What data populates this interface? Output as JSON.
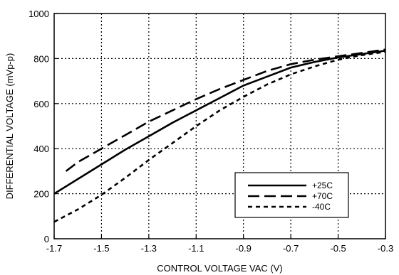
{
  "chart_data": {
    "type": "line",
    "title": "",
    "xlabel": "CONTROL VOLTAGE VAC (V)",
    "ylabel": "DIFFERENTIAL VOLTAGE (mVp-p)",
    "xlim": [
      -1.7,
      -0.3
    ],
    "ylim": [
      0,
      1000
    ],
    "xticks": [
      -1.7,
      -1.5,
      -1.3,
      -1.1,
      -0.9,
      -0.7,
      -0.5,
      -0.3
    ],
    "xtick_labels": [
      "-1.7",
      "-1.5",
      "-1.3",
      "-1.1",
      "-0.9",
      "-0.7",
      "-0.5",
      "-0.3"
    ],
    "yticks": [
      0,
      200,
      400,
      600,
      800,
      1000
    ],
    "ytick_labels": [
      "0",
      "200",
      "400",
      "600",
      "800",
      "1000"
    ],
    "grid": true,
    "legend_position": "bottom-right",
    "series": [
      {
        "name": "+25C",
        "dash": "solid",
        "x": [
          -1.7,
          -1.6,
          -1.5,
          -1.4,
          -1.3,
          -1.2,
          -1.1,
          -1.0,
          -0.9,
          -0.8,
          -0.7,
          -0.6,
          -0.5,
          -0.4,
          -0.3
        ],
        "y": [
          200,
          265,
          330,
          395,
          455,
          515,
          570,
          625,
          680,
          720,
          760,
          785,
          805,
          820,
          835
        ]
      },
      {
        "name": "+70C",
        "dash": "long-dash",
        "x": [
          -1.65,
          -1.6,
          -1.5,
          -1.4,
          -1.3,
          -1.2,
          -1.1,
          -1.0,
          -0.9,
          -0.8,
          -0.7,
          -0.6,
          -0.5,
          -0.4,
          -0.3
        ],
        "y": [
          300,
          340,
          400,
          460,
          520,
          570,
          620,
          665,
          705,
          745,
          775,
          795,
          810,
          825,
          840
        ]
      },
      {
        "name": "-40C",
        "dash": "short-dash",
        "x": [
          -1.7,
          -1.6,
          -1.5,
          -1.4,
          -1.3,
          -1.2,
          -1.1,
          -1.0,
          -0.9,
          -0.8,
          -0.7,
          -0.6,
          -0.5,
          -0.4,
          -0.3
        ],
        "y": [
          75,
          130,
          195,
          270,
          350,
          425,
          500,
          570,
          630,
          685,
          730,
          765,
          795,
          815,
          830
        ]
      }
    ]
  }
}
